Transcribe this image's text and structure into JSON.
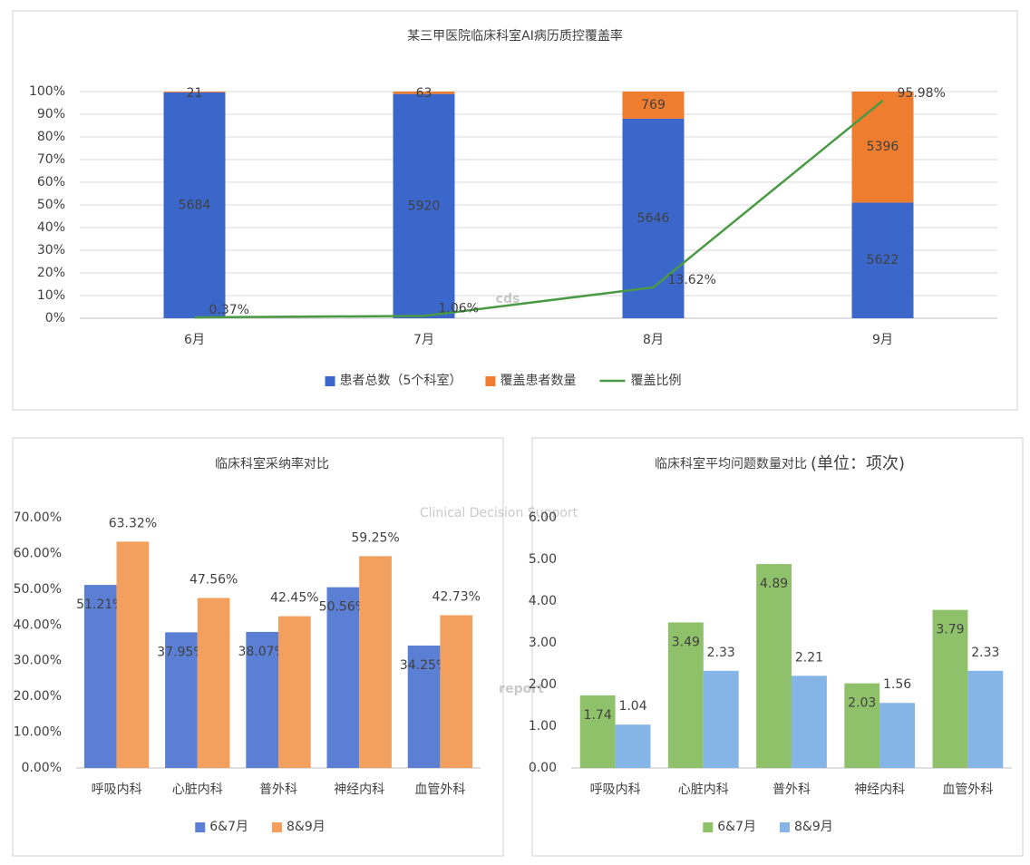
{
  "chart_data": [
    {
      "type": "combo",
      "title": "某三甲医院临床科室AI病历质控覆盖率",
      "categories": [
        "6月",
        "7月",
        "8月",
        "9月"
      ],
      "series": [
        {
          "name": "患者总数（5个科室）",
          "color": "#3a67c9",
          "kind": "bar",
          "values": [
            5684,
            5920,
            5646,
            5622
          ]
        },
        {
          "name": "覆盖患者数量",
          "color": "#ee7d2f",
          "kind": "bar",
          "values": [
            21,
            63,
            769,
            5396
          ]
        },
        {
          "name": "覆盖比例",
          "color": "#4a9a45",
          "kind": "line",
          "values": [
            0.37,
            1.06,
            13.62,
            95.98
          ],
          "value_labels": [
            "0.37%",
            "1.06%",
            "13.62%",
            "95.98%"
          ]
        }
      ],
      "stacked": "percent",
      "ylim": [
        0,
        100
      ],
      "yticks": [
        {
          "value": 0,
          "label": "0%"
        },
        {
          "value": 10,
          "label": "10%"
        },
        {
          "value": 20,
          "label": "20%"
        },
        {
          "value": 30,
          "label": "30%"
        },
        {
          "value": 40,
          "label": "40%"
        },
        {
          "value": 50,
          "label": "50%"
        },
        {
          "value": 60,
          "label": "60%"
        },
        {
          "value": 70,
          "label": "70%"
        },
        {
          "value": 80,
          "label": "80%"
        },
        {
          "value": 90,
          "label": "90%"
        },
        {
          "value": 100,
          "label": "100%"
        }
      ],
      "grid": true
    },
    {
      "type": "bar",
      "title": "临床科室采纳率对比",
      "categories": [
        "呼吸内科",
        "心脏内科",
        "普外科",
        "神经内科",
        "血管外科"
      ],
      "series": [
        {
          "name": "6&7月",
          "color": "#5b7fd4",
          "values": [
            51.21,
            37.95,
            38.07,
            50.56,
            34.25
          ],
          "value_labels": [
            "51.21%",
            "37.95%",
            "38.07%",
            "50.56%",
            "34.25%"
          ]
        },
        {
          "name": "8&9月",
          "color": "#f3a05e",
          "values": [
            63.32,
            47.56,
            42.45,
            59.25,
            42.73
          ],
          "value_labels": [
            "63.32%",
            "47.56%",
            "42.45%",
            "59.25%",
            "42.73%"
          ]
        }
      ],
      "ylim": [
        0,
        70
      ],
      "yticks": [
        {
          "value": 0,
          "label": "0.00%"
        },
        {
          "value": 10,
          "label": "10.00%"
        },
        {
          "value": 20,
          "label": "20.00%"
        },
        {
          "value": 30,
          "label": "30.00%"
        },
        {
          "value": 40,
          "label": "40.00%"
        },
        {
          "value": 50,
          "label": "50.00%"
        },
        {
          "value": 60,
          "label": "60.00%"
        },
        {
          "value": 70,
          "label": "70.00%"
        }
      ],
      "grid": false
    },
    {
      "type": "bar",
      "title": "临床科室平均问题数量对比",
      "subtitle": "(单位：项次)",
      "categories": [
        "呼吸内科",
        "心脏内科",
        "普外科",
        "神经内科",
        "血管外科"
      ],
      "series": [
        {
          "name": "6&7月",
          "color": "#8fc16a",
          "values": [
            1.74,
            3.49,
            4.89,
            2.03,
            3.79
          ]
        },
        {
          "name": "8&9月",
          "color": "#84b5e6",
          "values": [
            1.04,
            2.33,
            2.21,
            1.56,
            2.33
          ]
        }
      ],
      "ylim": [
        0,
        6
      ],
      "yticks": [
        {
          "value": 0,
          "label": "0.00"
        },
        {
          "value": 1,
          "label": "1.00"
        },
        {
          "value": 2,
          "label": "2.00"
        },
        {
          "value": 3,
          "label": "3.00"
        },
        {
          "value": 4,
          "label": "4.00"
        },
        {
          "value": 5,
          "label": "5.00"
        },
        {
          "value": 6,
          "label": "6.00"
        }
      ],
      "grid": false
    }
  ],
  "watermark": {
    "logo": "cds",
    "text": "Clinical Decision Support",
    "word": "report"
  }
}
